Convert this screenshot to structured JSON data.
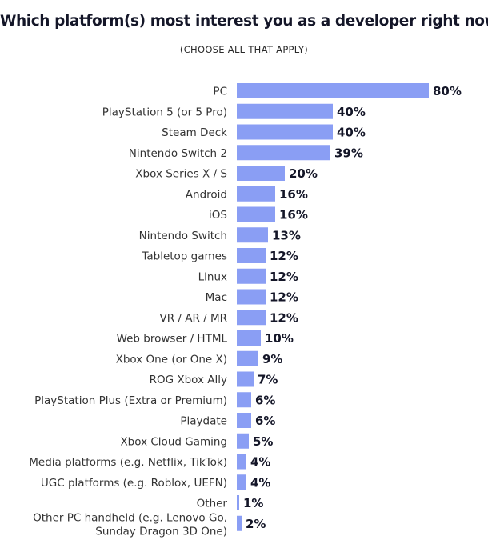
{
  "title": "Which platform(s) most interest you as a developer right now?",
  "subtitle": "(CHOOSE ALL THAT APPLY)",
  "colors": {
    "bar": "#8A9EF4",
    "value_text": "#141628",
    "label_text": "#333333"
  },
  "chart_data": {
    "type": "bar",
    "orientation": "horizontal",
    "title": "Which platform(s) most interest you as a developer right now?",
    "subtitle": "(CHOOSE ALL THAT APPLY)",
    "categories": [
      "PC",
      "PlayStation 5 (or 5 Pro)",
      "Steam Deck",
      "Nintendo Switch 2",
      "Xbox Series X / S",
      "Android",
      "iOS",
      "Nintendo Switch",
      "Tabletop games",
      "Linux",
      "Mac",
      "VR / AR / MR",
      "Web browser / HTML",
      "Xbox One (or One X)",
      "ROG Xbox Ally",
      "PlayStation Plus (Extra or Premium)",
      "Playdate",
      "Xbox Cloud Gaming",
      "Media platforms (e.g. Netflix, TikTok)",
      "UGC platforms (e.g. Roblox, UEFN)",
      "Other",
      "Other PC handheld (e.g. Lenovo Go, Sunday Dragon 3D One)"
    ],
    "values": [
      80,
      40,
      40,
      39,
      20,
      16,
      16,
      13,
      12,
      12,
      12,
      12,
      10,
      9,
      7,
      6,
      6,
      5,
      4,
      4,
      1,
      2
    ],
    "value_labels": [
      "80%",
      "40%",
      "40%",
      "39%",
      "20%",
      "16%",
      "16%",
      "13%",
      "12%",
      "12%",
      "12%",
      "12%",
      "10%",
      "9%",
      "7%",
      "6%",
      "6%",
      "5%",
      "4%",
      "4%",
      "1%",
      "2%"
    ],
    "unit": "%",
    "xlim": [
      0,
      80
    ],
    "grid": false,
    "legend": "none"
  }
}
